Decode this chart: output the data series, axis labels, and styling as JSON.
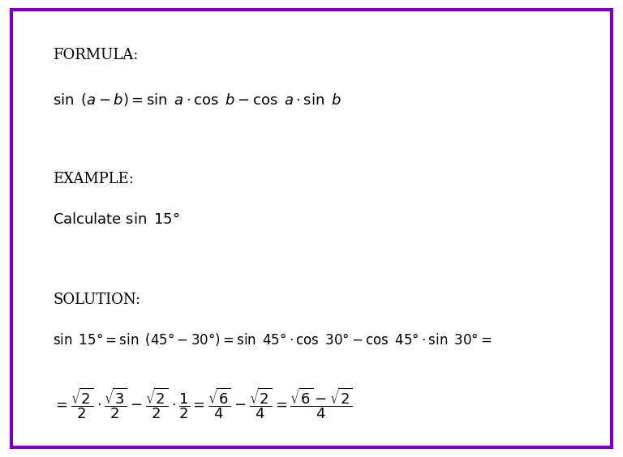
{
  "background_color": "#ffffff",
  "border_color": "#7B00BB",
  "border_linewidth": 3,
  "font_color": "#000000",
  "label_formula": "FORMULA:",
  "label_example": "EXAMPLE:",
  "label_solution": "SOLUTION:",
  "formula_line": "$\\sin \\ (a - b) = \\sin \\ a \\cdot \\cos \\ b - \\cos \\ a \\cdot \\sin \\ b$",
  "example_line": "$\\mathrm{Calculate} \\ \\sin \\ 15°$",
  "solution_line1": "$\\sin \\ 15° = \\sin \\ (45° - 30°) = \\sin \\ 45° \\cdot \\cos \\ 30° - \\cos \\ 45° \\cdot \\sin \\ 30° =$",
  "solution_line2": "$= \\dfrac{\\sqrt{2}}{2} \\cdot \\dfrac{\\sqrt{3}}{2} - \\dfrac{\\sqrt{2}}{2} \\cdot \\dfrac{1}{2} = \\dfrac{\\sqrt{6}}{4} - \\dfrac{\\sqrt{2}}{4} = \\dfrac{\\sqrt{6} - \\sqrt{2}}{4}$",
  "label_fontsize": 13,
  "formula_fontsize": 13,
  "example_calc_fontsize": 13,
  "solution_line1_fontsize": 12,
  "solution_line2_fontsize": 13
}
